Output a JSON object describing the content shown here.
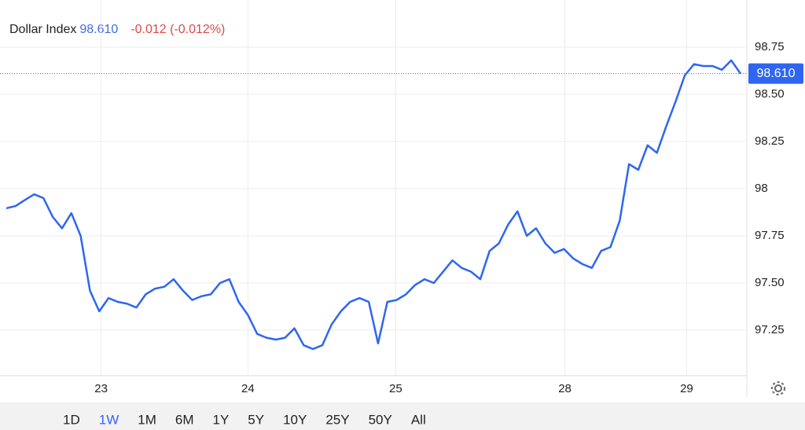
{
  "chart_data": {
    "type": "line",
    "title": "Dollar Index",
    "last_price": {
      "value": 98.61,
      "label": "98.610"
    },
    "change_label": "-0.012 (-0.012%)",
    "series": [
      {
        "name": "Dollar Index",
        "color": "#2f66f0",
        "values": [
          97.896,
          97.908,
          97.94,
          97.97,
          97.95,
          97.85,
          97.79,
          97.87,
          97.75,
          97.46,
          97.35,
          97.42,
          97.4,
          97.39,
          97.37,
          97.44,
          97.47,
          97.48,
          97.52,
          97.46,
          97.41,
          97.43,
          97.44,
          97.5,
          97.52,
          97.4,
          97.33,
          97.23,
          97.21,
          97.2,
          97.21,
          97.26,
          97.17,
          97.15,
          97.17,
          97.28,
          97.35,
          97.4,
          97.42,
          97.4,
          97.18,
          97.4,
          97.41,
          97.44,
          97.49,
          97.52,
          97.5,
          97.56,
          97.62,
          97.58,
          97.56,
          97.52,
          97.67,
          97.71,
          97.81,
          97.88,
          97.75,
          97.79,
          97.71,
          97.66,
          97.68,
          97.63,
          97.6,
          97.58,
          97.67,
          97.69,
          97.83,
          98.13,
          98.1,
          98.23,
          98.19,
          98.33,
          98.46,
          98.6,
          98.66,
          98.65,
          98.65,
          98.63,
          98.68,
          98.61
        ]
      }
    ],
    "xlim": [
      0,
      79
    ],
    "xticks": [
      {
        "value": 10.2,
        "label": "23"
      },
      {
        "value": 26,
        "label": "24"
      },
      {
        "value": 41.9,
        "label": "25"
      },
      {
        "value": 60.1,
        "label": "28"
      },
      {
        "value": 73.2,
        "label": "29"
      }
    ],
    "ylim": [
      97,
      99
    ],
    "yticks": [
      97.25,
      {
        "value": 97.5,
        "label": "97.50"
      },
      97.75,
      98,
      98.25,
      {
        "value": 98.5,
        "label": "98.50"
      },
      98.75
    ],
    "grid": true,
    "ranges": [
      "1D",
      "1W",
      "1M",
      "6M",
      "1Y",
      "5Y",
      "10Y",
      "25Y",
      "50Y",
      "All"
    ],
    "selected_range": "1W"
  }
}
